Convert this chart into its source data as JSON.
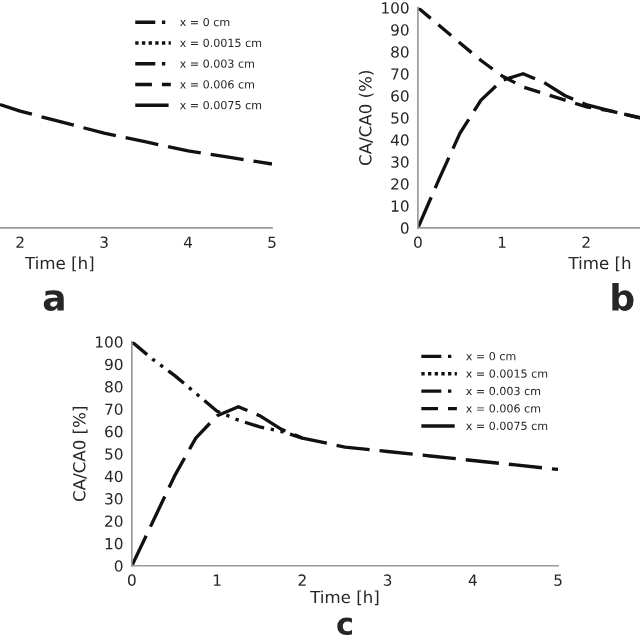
{
  "chart_data": [
    {
      "type": "line",
      "xlabel": "Time [h]",
      "annotations": [
        "a"
      ],
      "x": [
        1.76,
        2,
        2.5,
        3,
        3.5,
        4,
        4.5,
        5
      ],
      "xlim": [
        1.76,
        5
      ],
      "xticks": [
        2,
        3,
        4,
        5
      ],
      "ylim": [
        0,
        100
      ],
      "tick_labels": "x",
      "grid": false,
      "legend": "top right",
      "series": [
        {
          "name": "x = 0 cm",
          "color": "#111111",
          "line_style": "dashdotdot",
          "values": [
            null,
            null,
            null,
            null,
            null,
            null,
            null,
            null
          ]
        },
        {
          "name": "x = 0.0015 cm",
          "color": "#111111",
          "line_style": "dotted",
          "values": [
            null,
            null,
            null,
            null,
            null,
            null,
            null,
            null
          ]
        },
        {
          "name": "x = 0.003 cm",
          "color": "#111111",
          "line_style": "dashdot",
          "values": [
            null,
            null,
            null,
            null,
            null,
            null,
            null,
            null
          ]
        },
        {
          "name": "x = 0.006 cm",
          "color": "#111111",
          "line_style": "dashed",
          "values": [
            null,
            null,
            null,
            null,
            null,
            null,
            null,
            null
          ]
        },
        {
          "name": "x = 0.0075 cm",
          "color": "#111111",
          "line_style": "longdash",
          "values": [
            56,
            53,
            48,
            43,
            39,
            35,
            32,
            29
          ]
        }
      ]
    },
    {
      "type": "line",
      "xlabel": "Time [h",
      "ylabel": "CA/CA0 (%)",
      "annotations": [
        "b"
      ],
      "x": [
        0,
        0.25,
        0.5,
        0.75,
        1,
        1.25,
        1.5,
        1.75,
        2,
        2.3,
        2.64
      ],
      "xlim": [
        0,
        2.64
      ],
      "xticks": [
        0,
        1,
        2
      ],
      "ylim": [
        0,
        100
      ],
      "yticks": [
        0,
        10,
        20,
        30,
        40,
        50,
        60,
        70,
        80,
        90,
        100
      ],
      "grid": false,
      "series": [
        {
          "color": "#111111",
          "line_style": "dashed",
          "values": [
            100,
            92,
            84,
            76,
            69,
            64,
            61,
            58,
            55,
            53,
            50
          ]
        },
        {
          "color": "#111111",
          "line_style": "longdash",
          "values": [
            0,
            22,
            43,
            58,
            67,
            70,
            66,
            60,
            56,
            53,
            50
          ]
        }
      ]
    },
    {
      "type": "line",
      "xlabel": "Time [h]",
      "ylabel": "CA/CA0 [%]",
      "annotations": [
        "c"
      ],
      "x": [
        0,
        0.25,
        0.5,
        0.75,
        1,
        1.25,
        1.5,
        1.75,
        2,
        2.5,
        3,
        3.5,
        4,
        4.5,
        5
      ],
      "xlim": [
        0,
        5
      ],
      "xticks": [
        0,
        1,
        2,
        3,
        4,
        5
      ],
      "ylim": [
        0,
        100
      ],
      "yticks": [
        0,
        10,
        20,
        30,
        40,
        50,
        60,
        70,
        80,
        90,
        100
      ],
      "grid": false,
      "legend": "top right",
      "series": [
        {
          "name": "x = 0 cm",
          "color": "#111111",
          "line_style": "dashdotdot",
          "values": [
            100,
            92,
            85,
            77,
            69,
            65,
            62,
            60,
            57,
            null,
            null,
            null,
            null,
            null,
            null
          ]
        },
        {
          "name": "x = 0.0015 cm",
          "color": "#111111",
          "line_style": "dotted",
          "values": [
            null,
            null,
            null,
            null,
            null,
            null,
            null,
            null,
            null,
            null,
            null,
            null,
            null,
            null,
            null
          ]
        },
        {
          "name": "x = 0.003 cm",
          "color": "#111111",
          "line_style": "dashdot",
          "values": [
            null,
            null,
            null,
            null,
            null,
            null,
            null,
            null,
            null,
            null,
            null,
            null,
            null,
            null,
            null
          ]
        },
        {
          "name": "x = 0.006 cm",
          "color": "#111111",
          "line_style": "dashed",
          "values": [
            null,
            null,
            null,
            null,
            null,
            null,
            null,
            null,
            null,
            null,
            null,
            null,
            null,
            null,
            null
          ]
        },
        {
          "name": "x = 0.0075 cm",
          "color": "#111111",
          "line_style": "longdash",
          "values": [
            0,
            20,
            40,
            57,
            67,
            71,
            67,
            61,
            57,
            53,
            51,
            49,
            47,
            45,
            43
          ]
        }
      ]
    }
  ]
}
